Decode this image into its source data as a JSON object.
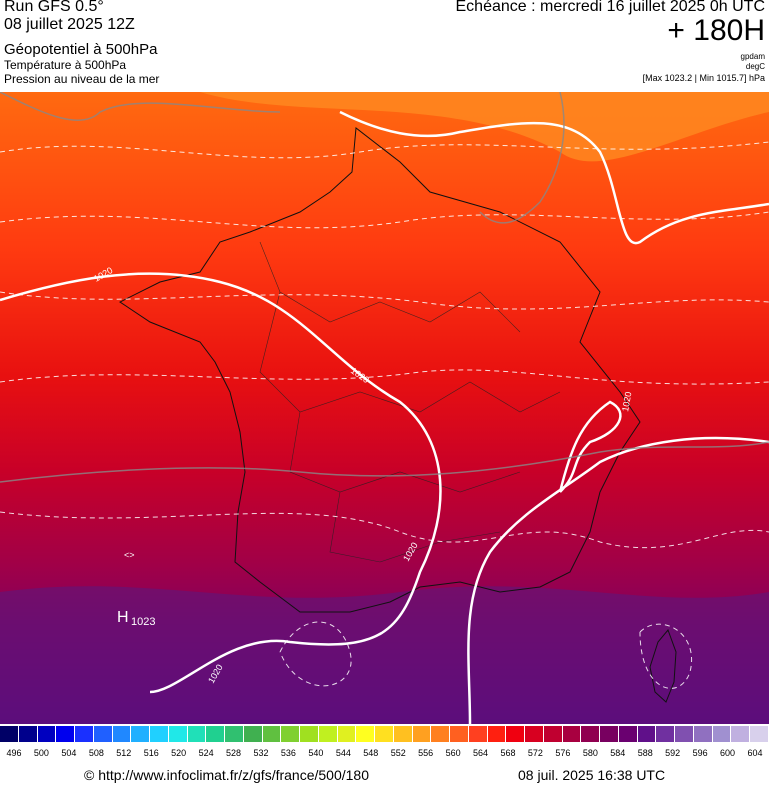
{
  "header": {
    "run": "Run GFS 0.5°",
    "run_date": "08 juillet 2025 12Z",
    "layer1": "Géopotentiel à 500hPa",
    "layer2": "Température à 500hPa",
    "layer3": "Pression au niveau de la mer",
    "echeance": "Echéance : mercredi 16 juillet 2025 0h UTC",
    "lead": "+ 180H",
    "unit1": "gpdam",
    "unit2": "degC",
    "range": "[Max 1023.2 | Min 1015.7] hPa"
  },
  "map": {
    "isobar_label": "1020",
    "high_symbol": "H",
    "high_value": "1023",
    "low_marks": [
      "<>"
    ]
  },
  "colorbar": {
    "ticks": [
      "496",
      "500",
      "504",
      "508",
      "512",
      "516",
      "520",
      "524",
      "528",
      "532",
      "536",
      "540",
      "544",
      "548",
      "552",
      "556",
      "560",
      "564",
      "568",
      "572",
      "576",
      "580",
      "584",
      "588",
      "592",
      "596",
      "600",
      "604"
    ],
    "colors": [
      "#000066",
      "#00008c",
      "#0000c0",
      "#0000ee",
      "#1a30ff",
      "#2060ff",
      "#2088ff",
      "#20b0ff",
      "#20d0ff",
      "#20e8e8",
      "#20e0b8",
      "#20d090",
      "#30c070",
      "#40b050",
      "#60c040",
      "#80d030",
      "#a0e020",
      "#c0f020",
      "#e0f020",
      "#ffff20",
      "#ffe020",
      "#ffc020",
      "#ffa020",
      "#ff8020",
      "#ff6020",
      "#ff4020",
      "#ff2010",
      "#f00010",
      "#d80020",
      "#c00030",
      "#a80040",
      "#900050",
      "#780060",
      "#6a0070",
      "#60108a",
      "#7030a0",
      "#8050b0",
      "#9070c0",
      "#a090d0",
      "#c0b0e0",
      "#d8d0ec"
    ]
  },
  "footer": {
    "url": "© http://www.infoclimat.fr/z/gfs/france/500/180",
    "timestamp": "08 juil. 2025 16:38 UTC"
  }
}
